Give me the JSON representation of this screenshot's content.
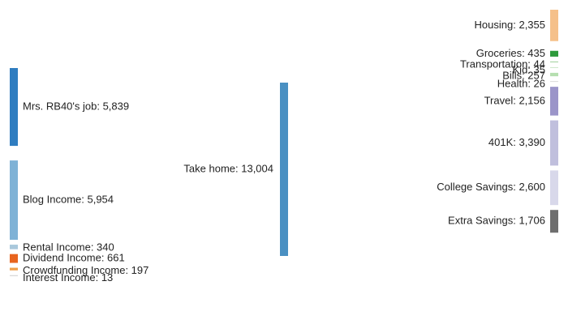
{
  "chart_data": {
    "type": "sankey",
    "center": {
      "name": "Take home",
      "value": 13004,
      "label": "Take home: 13,004",
      "color": "#4a90c2"
    },
    "sources": [
      {
        "name": "Mrs. RB40's job",
        "value": 5839,
        "label": "Mrs. RB40's job: 5,839",
        "color": "#2f7dc0",
        "link_color": "#a9c8dc"
      },
      {
        "name": "Blog Income",
        "value": 5954,
        "label": "Blog Income: 5,954",
        "color": "#7fb2d6",
        "link_color": "#a9c8dc"
      },
      {
        "name": "Rental Income",
        "value": 340,
        "label": "Rental Income: 340",
        "color": "#a9c8dc",
        "link_color": "#a9c8dc"
      },
      {
        "name": "Dividend Income",
        "value": 661,
        "label": "Dividend Income: 661",
        "color": "#e8641e",
        "link_color": "#a9c8dc"
      },
      {
        "name": "Crowdfunding Income",
        "value": 197,
        "label": "Crowdfunding Income: 197",
        "color": "#f0a04a",
        "link_color": "#a9c8dc"
      },
      {
        "name": "Interest Income",
        "value": 13,
        "label": "Interest Income: 13",
        "color": "#cfcfcf",
        "link_color": "#cfe0ea"
      }
    ],
    "targets": [
      {
        "name": "Housing",
        "value": 2355,
        "label": "Housing: 2,355",
        "color": "#f5c08a",
        "link_color": "#f0d5b9"
      },
      {
        "name": "Groceries",
        "value": 435,
        "label": "Groceries: 435",
        "color": "#2e9a3c",
        "link_color": "#8fd08f"
      },
      {
        "name": "Transportation",
        "value": 44,
        "label": "Transportation: 44",
        "color": "#9ecf9a",
        "link_color": "#c5e6c2"
      },
      {
        "name": "Kid",
        "value": 35,
        "label": "Kid: 35",
        "color": "#cde7c9",
        "link_color": "#dcefd9"
      },
      {
        "name": "Bills",
        "value": 257,
        "label": "Bills: 257",
        "color": "#b6dfb0",
        "link_color": "#d7ecd3"
      },
      {
        "name": "Health",
        "value": 26,
        "label": "Health: 26",
        "color": "#d9d9d9",
        "link_color": "#e4e4e4"
      },
      {
        "name": "Travel",
        "value": 2156,
        "label": "Travel: 2,156",
        "color": "#9b95c9",
        "link_color": "#c7c5e0"
      },
      {
        "name": "401K",
        "value": 3390,
        "label": "401K: 3,390",
        "color": "#c0bfdd",
        "link_color": "#d6d7e6"
      },
      {
        "name": "College Savings",
        "value": 2600,
        "label": "College Savings: 2,600",
        "color": "#d8d8ea",
        "link_color": "#e6e6ee"
      },
      {
        "name": "Extra Savings",
        "value": 1706,
        "label": "Extra Savings: 1,706",
        "color": "#6e6e6e",
        "link_color": "#a6a6a6"
      }
    ]
  }
}
